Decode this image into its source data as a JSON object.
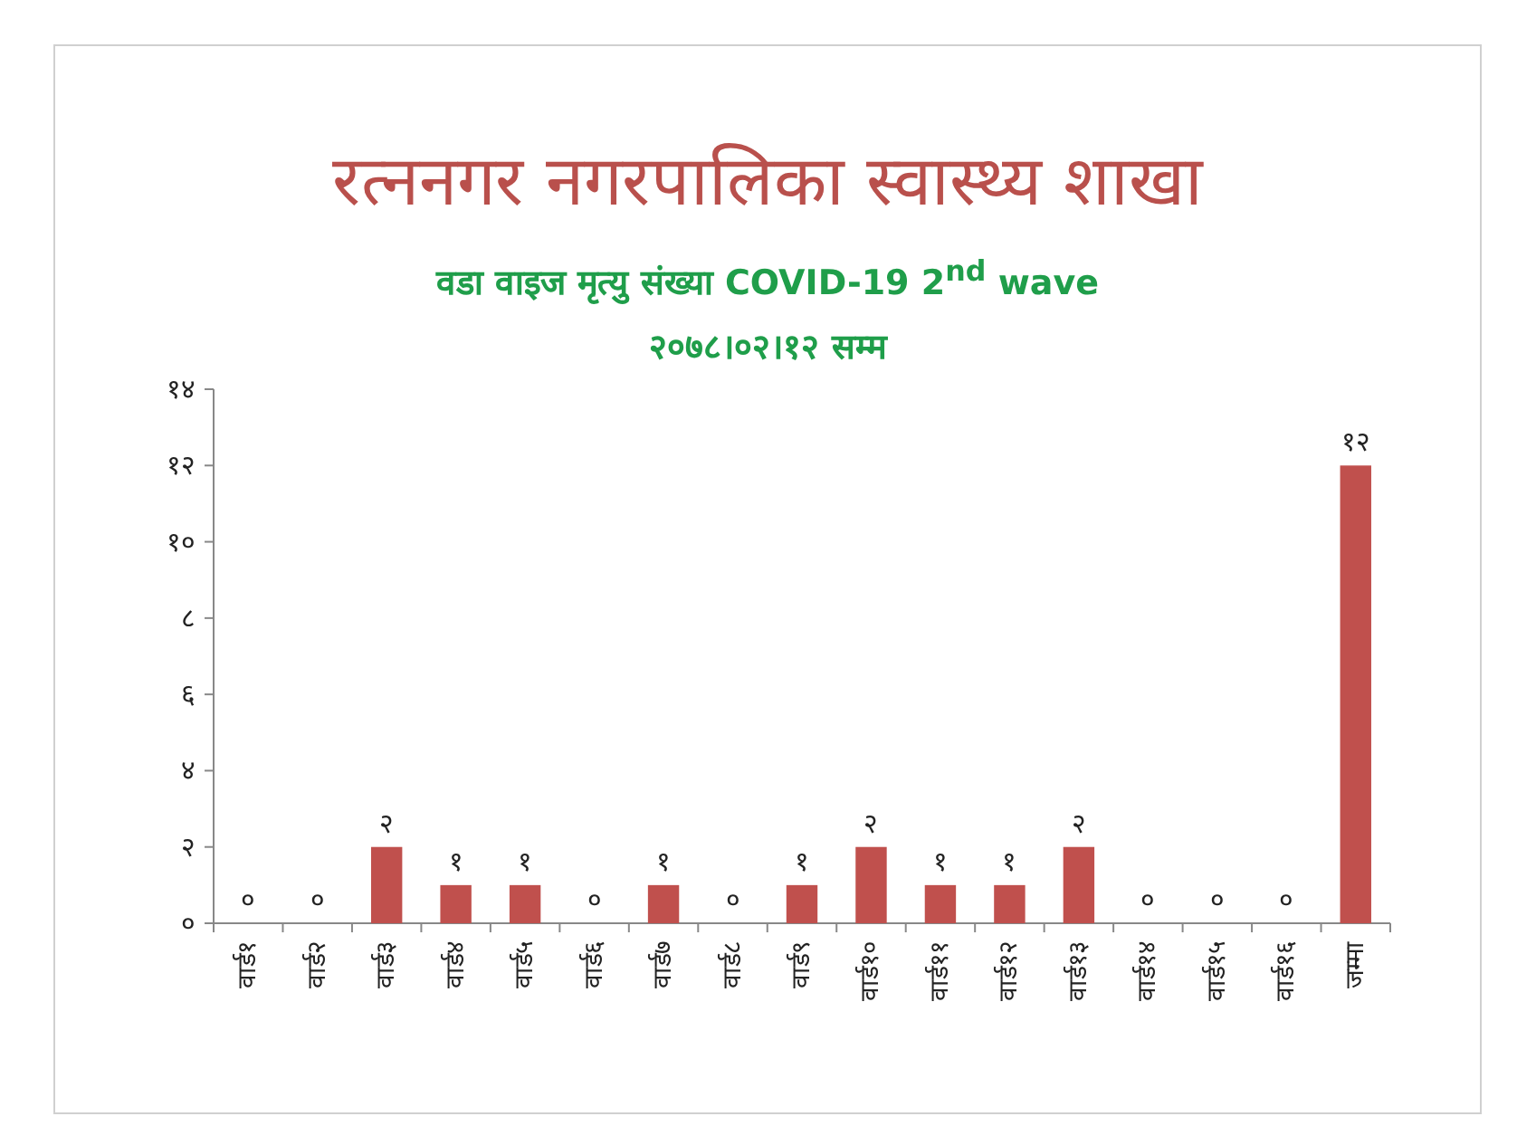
{
  "chart_data": {
    "type": "bar",
    "title": "रत्ननगर नगरपालिका स्वास्थ्य शाखा",
    "subtitle": "वडा वाइज मृत्यु संख्या COVID-19 2$^{nd}$ wave",
    "annotations": [
      "२०७८।०२।१२ सम्म"
    ],
    "categories": [
      "वार्ड१",
      "वार्ड२",
      "वार्ड३",
      "वार्ड४",
      "वार्ड५",
      "वार्ड६",
      "वार्ड७",
      "वार्ड८",
      "वार्ड९",
      "वार्ड१०",
      "वार्ड११",
      "वार्ड१२",
      "वार्ड१३",
      "वार्ड१४",
      "वार्ड१५",
      "वार्ड१६",
      "जम्मा"
    ],
    "values": [
      0,
      0,
      2,
      1,
      1,
      0,
      1,
      0,
      1,
      2,
      1,
      1,
      2,
      0,
      0,
      0,
      12
    ],
    "value_labels": [
      "०",
      "०",
      "२",
      "१",
      "१",
      "०",
      "१",
      "०",
      "१",
      "२",
      "१",
      "१",
      "२",
      "०",
      "०",
      "०",
      "१२"
    ],
    "color": "#c0504d",
    "ylim": [
      0,
      14
    ],
    "yticks": [
      {
        "value": 0,
        "label": "०"
      },
      {
        "value": 2,
        "label": "२"
      },
      {
        "value": 4,
        "label": "४"
      },
      {
        "value": 6,
        "label": "६"
      },
      {
        "value": 8,
        "label": "८"
      },
      {
        "value": 10,
        "label": "१०"
      },
      {
        "value": 12,
        "label": "१२"
      },
      {
        "value": 14,
        "label": "१४"
      }
    ]
  }
}
